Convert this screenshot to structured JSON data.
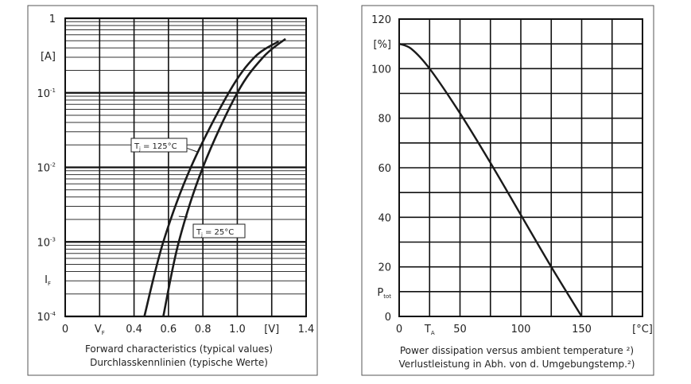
{
  "chart_data": [
    {
      "type": "line",
      "title": "",
      "caption_lines": [
        "Forward characteristics (typical values)",
        "Durchlasskennlinien (typische Werte)"
      ],
      "xlabel": "V_F",
      "xunit": "[V]",
      "ylabel": "I_F",
      "yunit": "[A]",
      "xlim": [
        0,
        1.4
      ],
      "ylim": [
        0.0001,
        1
      ],
      "yscale": "log",
      "grid": true,
      "x_ticks": [
        "0",
        "V_F",
        "0.4",
        "0.6",
        "0.8",
        "1.0",
        "[V]",
        "1.4"
      ],
      "y_ticks": [
        {
          "base": "1",
          "exp": ""
        },
        {
          "base": "10",
          "exp": "-1"
        },
        {
          "base": "10",
          "exp": "-2"
        },
        {
          "base": "10",
          "exp": "-3"
        },
        {
          "base": "10",
          "exp": "-4"
        }
      ],
      "series": [
        {
          "name": "T_j = 125°C",
          "label_main": "T",
          "label_sub": "j",
          "label_rest": " = 125°C",
          "x": [
            0.46,
            0.57,
            0.73,
            0.95,
            1.1,
            1.24
          ],
          "y": [
            0.0001,
            0.001,
            0.01,
            0.1,
            0.3,
            0.49
          ]
        },
        {
          "name": "T_j = 25°C",
          "label_main": "T",
          "label_sub": "j",
          "label_rest": " = 25°C",
          "x": [
            0.57,
            0.66,
            0.8,
            1.0,
            1.15,
            1.28
          ],
          "y": [
            0.0001,
            0.001,
            0.01,
            0.1,
            0.3,
            0.53
          ]
        }
      ],
      "line_color": "#1a1a1a"
    },
    {
      "type": "line",
      "title": "",
      "caption_lines": [
        "Power dissipation versus ambient temperature ²)",
        "Verlustleistung in Abh. von d. Umgebungstemp.²)"
      ],
      "xlabel": "T_A",
      "xunit": "[°C]",
      "ylabel": "P_tot",
      "yunit": "[%]",
      "xlim": [
        0,
        200
      ],
      "ylim": [
        0,
        120
      ],
      "grid": true,
      "x_ticks": [
        "0",
        "T_A",
        "50",
        "",
        "100",
        "",
        "150",
        "",
        "[°C]"
      ],
      "y_ticks": [
        "0",
        "P_tot",
        "20",
        "",
        "40",
        "",
        "60",
        "",
        "80",
        "",
        "100",
        "[%]",
        "120"
      ],
      "series": [
        {
          "x": [
            0,
            10,
            25,
            50,
            75,
            100,
            125,
            150
          ],
          "y": [
            110,
            108,
            100,
            82,
            62,
            41,
            20,
            0
          ]
        }
      ],
      "line_color": "#1a1a1a"
    }
  ]
}
